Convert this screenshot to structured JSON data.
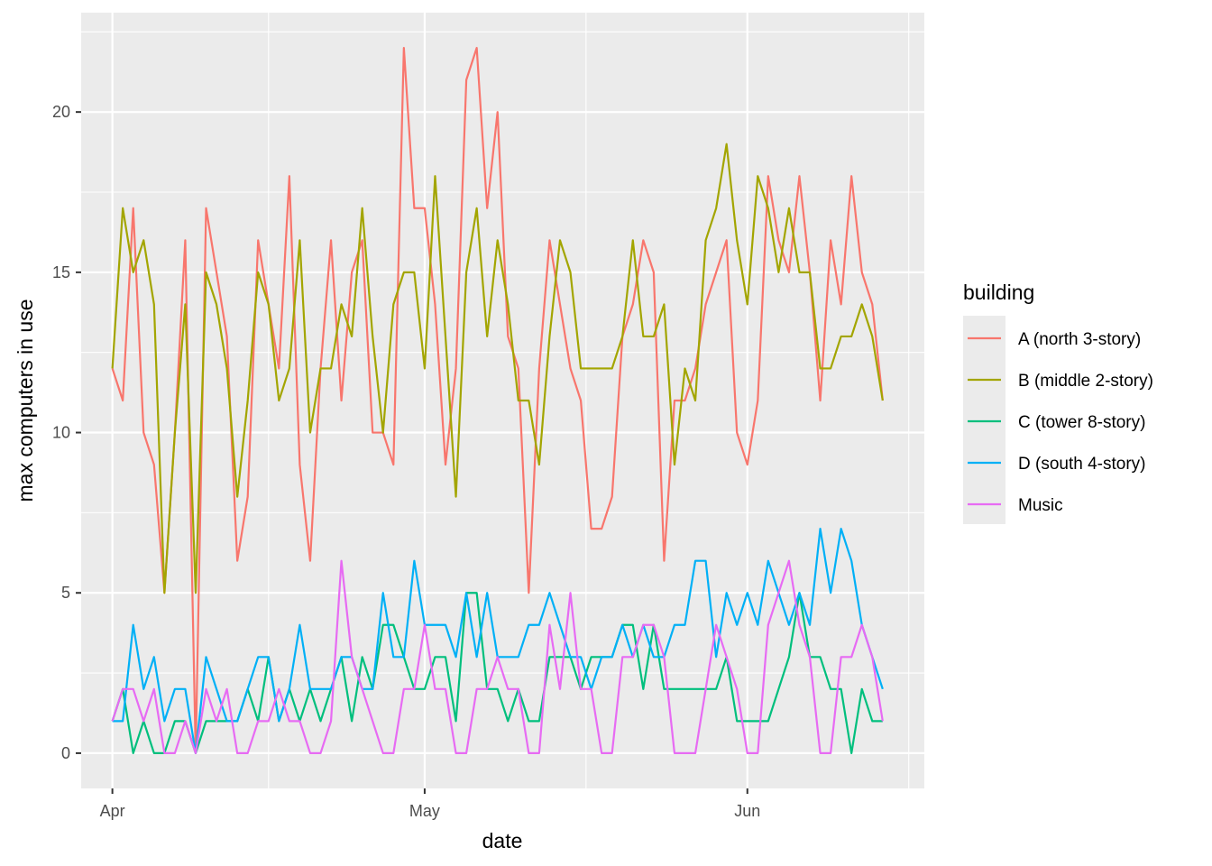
{
  "chart_data": {
    "type": "line",
    "title": "",
    "xlabel": "date",
    "ylabel": "max computers in use",
    "x_ticks": [
      {
        "date": "2023-04-01",
        "label": "Apr"
      },
      {
        "date": "2023-05-01",
        "label": "May"
      },
      {
        "date": "2023-06-01",
        "label": "Jun"
      }
    ],
    "y_ticks": [
      0,
      5,
      10,
      15,
      20
    ],
    "xlim": [
      "2023-03-29",
      "2023-06-18"
    ],
    "ylim": [
      -1.1,
      23.1
    ],
    "grid": true,
    "legend": {
      "title": "building",
      "position": "right"
    },
    "x_start": "2023-04-01",
    "x_step_days": 1,
    "series": [
      {
        "name": "A (north 3-story)",
        "color": "#F8766D",
        "values": [
          12,
          11,
          17,
          10,
          9,
          5,
          10,
          16,
          0,
          17,
          15,
          13,
          6,
          8,
          16,
          14,
          12,
          18,
          9,
          6,
          12,
          16,
          11,
          15,
          16,
          10,
          10,
          9,
          22,
          17,
          17,
          14,
          9,
          12,
          21,
          22,
          17,
          20,
          13,
          12,
          5,
          12,
          16,
          14,
          12,
          11,
          7,
          7,
          8,
          13,
          14,
          16,
          15,
          6,
          11,
          11,
          12,
          14,
          15,
          16,
          10,
          9,
          11,
          18,
          16,
          15,
          18,
          15,
          11,
          16,
          14,
          18,
          15,
          14,
          11
        ]
      },
      {
        "name": "B (middle 2-story)",
        "color": "#A3A500",
        "values": [
          12,
          17,
          15,
          16,
          14,
          5,
          10,
          14,
          5,
          15,
          14,
          12,
          8,
          11,
          15,
          14,
          11,
          12,
          16,
          10,
          12,
          12,
          14,
          13,
          17,
          13,
          10,
          14,
          15,
          15,
          12,
          18,
          13,
          8,
          15,
          17,
          13,
          16,
          14,
          11,
          11,
          9,
          13,
          16,
          15,
          12,
          12,
          12,
          12,
          13,
          16,
          13,
          13,
          14,
          9,
          12,
          11,
          16,
          17,
          19,
          16,
          14,
          18,
          17,
          15,
          17,
          15,
          15,
          12,
          12,
          13,
          13,
          14,
          13,
          11
        ]
      },
      {
        "name": "C (tower 8-story)",
        "color": "#00BF7D",
        "values": [
          1,
          2,
          0,
          1,
          0,
          0,
          1,
          1,
          0,
          1,
          1,
          1,
          1,
          2,
          1,
          3,
          1,
          2,
          1,
          2,
          1,
          2,
          3,
          1,
          3,
          2,
          4,
          4,
          3,
          2,
          2,
          3,
          3,
          1,
          5,
          5,
          2,
          2,
          1,
          2,
          1,
          1,
          3,
          3,
          3,
          2,
          3,
          3,
          3,
          4,
          4,
          2,
          4,
          2,
          2,
          2,
          2,
          2,
          2,
          3,
          1,
          1,
          1,
          1,
          2,
          3,
          5,
          3,
          3,
          2,
          2,
          0,
          2,
          1,
          1
        ]
      },
      {
        "name": "D (south 4-story)",
        "color": "#00B0F6",
        "values": [
          1,
          1,
          4,
          2,
          3,
          1,
          2,
          2,
          0,
          3,
          2,
          1,
          1,
          2,
          3,
          3,
          1,
          2,
          4,
          2,
          2,
          2,
          3,
          3,
          2,
          2,
          5,
          3,
          3,
          6,
          4,
          4,
          4,
          3,
          5,
          3,
          5,
          3,
          3,
          3,
          4,
          4,
          5,
          4,
          3,
          3,
          2,
          3,
          3,
          4,
          3,
          4,
          3,
          3,
          4,
          4,
          6,
          6,
          3,
          5,
          4,
          5,
          4,
          6,
          5,
          4,
          5,
          4,
          7,
          5,
          7,
          6,
          4,
          3,
          2
        ]
      },
      {
        "name": "Music",
        "color": "#E76BF3",
        "values": [
          1,
          2,
          2,
          1,
          2,
          0,
          0,
          1,
          0,
          2,
          1,
          2,
          0,
          0,
          1,
          1,
          2,
          1,
          1,
          0,
          0,
          1,
          6,
          3,
          2,
          1,
          0,
          0,
          2,
          2,
          4,
          2,
          2,
          0,
          0,
          2,
          2,
          3,
          2,
          2,
          0,
          0,
          4,
          2,
          5,
          2,
          2,
          0,
          0,
          3,
          3,
          4,
          4,
          3,
          0,
          0,
          0,
          2,
          4,
          3,
          2,
          0,
          0,
          4,
          5,
          6,
          4,
          3,
          0,
          0,
          3,
          3,
          4,
          3,
          1
        ]
      }
    ]
  }
}
